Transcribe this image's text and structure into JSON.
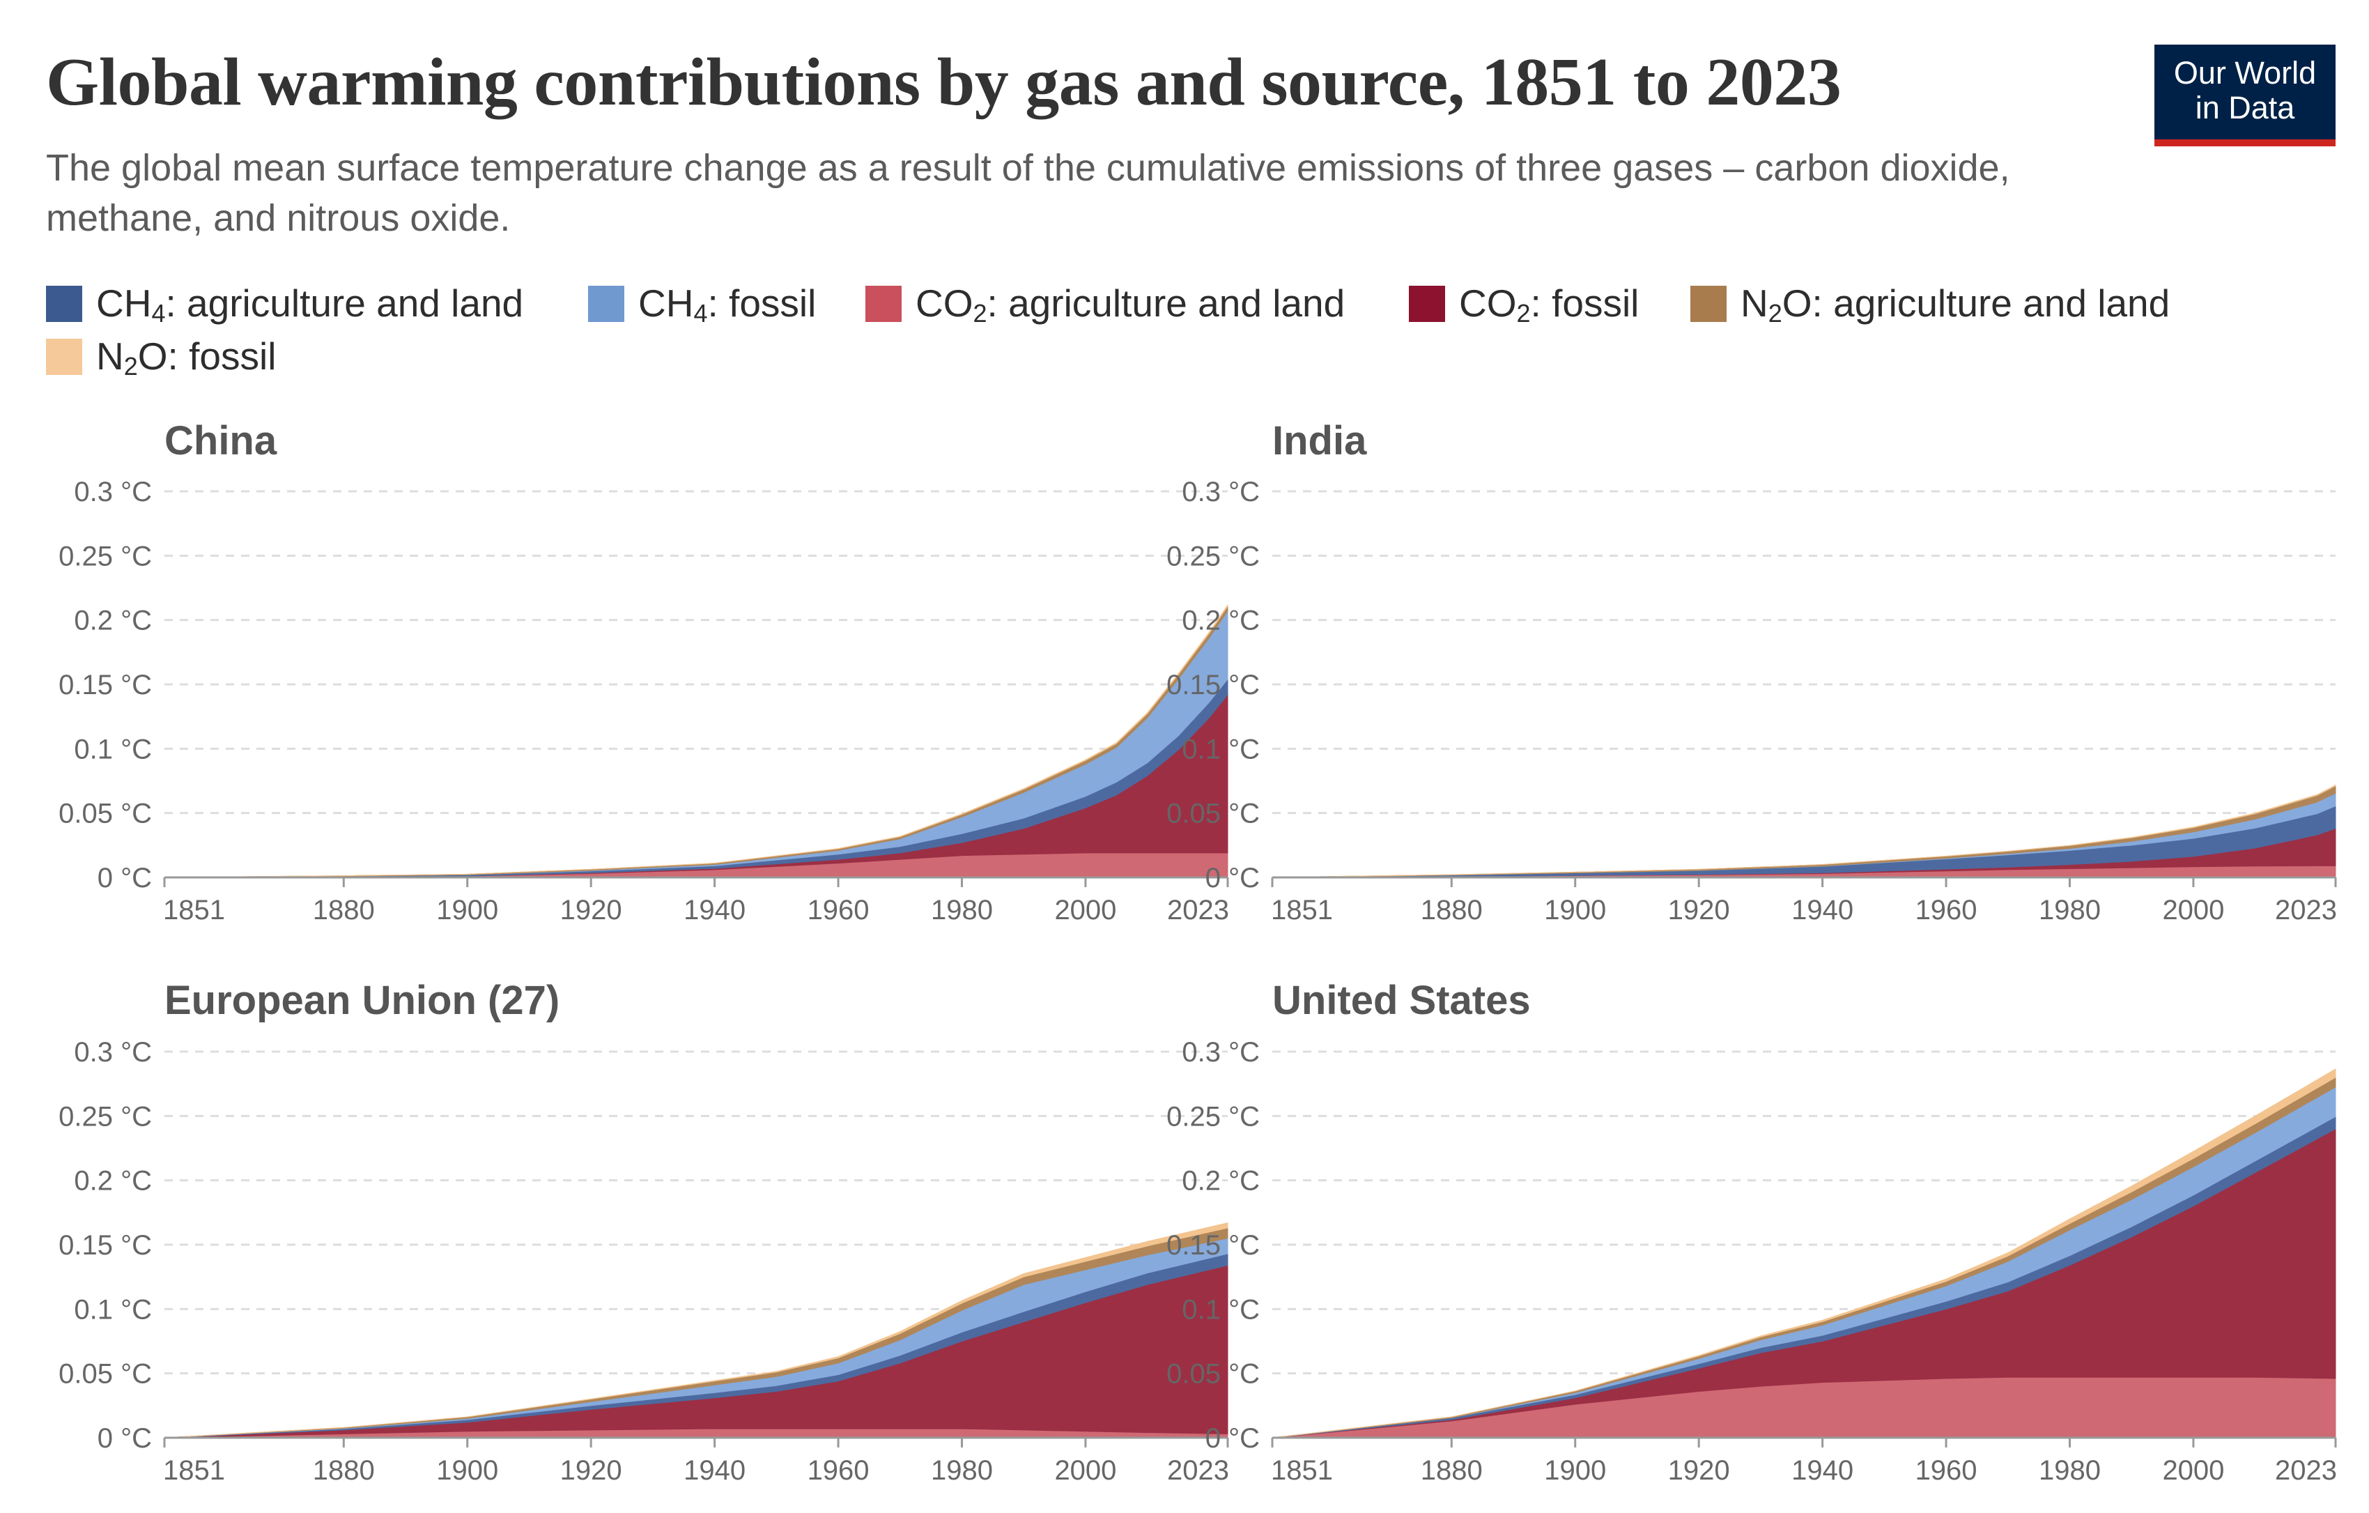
{
  "header": {
    "title": "Global warming contributions by gas and source, 1851 to 2023",
    "subtitle": "The global mean surface temperature change as a result of the cumulative emissions of three gases – carbon dioxide, methane, and nitrous oxide."
  },
  "logo": {
    "line1": "Our World",
    "line2": "in Data"
  },
  "legend": {
    "items": [
      {
        "gas": "CH",
        "sub": "4",
        "rest": ": agriculture and land",
        "color": "#3c5a8f"
      },
      {
        "gas": "CH",
        "sub": "4",
        "rest": ": fossil",
        "color": "#7099d0"
      },
      {
        "gas": "CO",
        "sub": "2",
        "rest": ": agriculture and land",
        "color": "#c9505c"
      },
      {
        "gas": "CO",
        "sub": "2",
        "rest": ": fossil",
        "color": "#8c1230"
      },
      {
        "gas": "N",
        "sub": "2",
        "rest": "O: agriculture and land",
        "color": "#a87c4d"
      },
      {
        "gas": "N",
        "sub": "2",
        "rest": "O: fossil",
        "color": "#f5c99a"
      }
    ]
  },
  "chart_data": [
    {
      "type": "area",
      "stacked": true,
      "title": "China",
      "x": [
        1851,
        1880,
        1900,
        1920,
        1940,
        1960,
        1970,
        1980,
        1990,
        2000,
        2005,
        2010,
        2015,
        2020,
        2023
      ],
      "x_ticks": [
        "1851",
        "1880",
        "1900",
        "1920",
        "1940",
        "1960",
        "1980",
        "2000",
        "2023"
      ],
      "y_ticks": [
        "0 °C",
        "0.05 °C",
        "0.1 °C",
        "0.15 °C",
        "0.2 °C",
        "0.25 °C",
        "0.3 °C"
      ],
      "ylim": [
        0,
        0.3
      ],
      "series": [
        {
          "name": "CO₂: agriculture and land",
          "values": [
            0,
            0.0005,
            0.001,
            0.003,
            0.006,
            0.011,
            0.014,
            0.017,
            0.018,
            0.019,
            0.019,
            0.019,
            0.019,
            0.019,
            0.019
          ]
        },
        {
          "name": "CO₂: fossil",
          "values": [
            0,
            0,
            0,
            0.0005,
            0.001,
            0.003,
            0.005,
            0.01,
            0.02,
            0.035,
            0.045,
            0.06,
            0.08,
            0.105,
            0.123
          ]
        },
        {
          "name": "CH₄: agriculture and land",
          "values": [
            0,
            0.0005,
            0.001,
            0.0015,
            0.002,
            0.004,
            0.005,
            0.007,
            0.008,
            0.009,
            0.01,
            0.01,
            0.011,
            0.012,
            0.012
          ]
        },
        {
          "name": "CH₄: fossil",
          "values": [
            0,
            0,
            0,
            0.0005,
            0.001,
            0.003,
            0.006,
            0.013,
            0.02,
            0.025,
            0.027,
            0.035,
            0.044,
            0.05,
            0.053
          ]
        },
        {
          "name": "N₂O: agriculture and land",
          "values": [
            0,
            0.0003,
            0.0005,
            0.0008,
            0.001,
            0.0013,
            0.0016,
            0.002,
            0.0025,
            0.0028,
            0.003,
            0.0032,
            0.0034,
            0.0036,
            0.0037
          ]
        },
        {
          "name": "N₂O: fossil",
          "values": [
            0,
            0,
            0,
            0,
            0.0001,
            0.0002,
            0.0003,
            0.0004,
            0.0005,
            0.0006,
            0.0007,
            0.0008,
            0.0009,
            0.001,
            0.001
          ]
        }
      ]
    },
    {
      "type": "area",
      "stacked": true,
      "title": "India",
      "x": [
        1851,
        1880,
        1900,
        1920,
        1940,
        1960,
        1970,
        1980,
        1990,
        2000,
        2010,
        2020,
        2023
      ],
      "x_ticks": [
        "1851",
        "1880",
        "1900",
        "1920",
        "1940",
        "1960",
        "1980",
        "2000",
        "2023"
      ],
      "y_ticks": [
        "0 °C",
        "0.05 °C",
        "0.1 °C",
        "0.15 °C",
        "0.2 °C",
        "0.25 °C",
        "0.3 °C"
      ],
      "ylim": [
        0,
        0.3
      ],
      "series": [
        {
          "name": "CO₂: agriculture and land",
          "values": [
            0,
            0.0008,
            0.0015,
            0.002,
            0.003,
            0.005,
            0.006,
            0.0068,
            0.0075,
            0.0083,
            0.0088,
            0.009,
            0.009
          ]
        },
        {
          "name": "CO₂: fossil",
          "values": [
            0,
            0,
            0,
            0.0003,
            0.0006,
            0.0014,
            0.002,
            0.0032,
            0.005,
            0.008,
            0.014,
            0.024,
            0.029
          ]
        },
        {
          "name": "CH₄: agriculture and land",
          "values": [
            0,
            0.001,
            0.002,
            0.003,
            0.005,
            0.008,
            0.0095,
            0.011,
            0.0125,
            0.014,
            0.0155,
            0.0165,
            0.0175
          ]
        },
        {
          "name": "CH₄: fossil",
          "values": [
            0,
            0,
            0,
            0.0001,
            0.0002,
            0.0005,
            0.001,
            0.0015,
            0.003,
            0.005,
            0.007,
            0.009,
            0.01
          ]
        },
        {
          "name": "N₂O: agriculture and land",
          "values": [
            0,
            0.0003,
            0.0006,
            0.0009,
            0.0012,
            0.0016,
            0.0018,
            0.0022,
            0.0028,
            0.0034,
            0.0042,
            0.0052,
            0.0056
          ]
        },
        {
          "name": "N₂O: fossil",
          "values": [
            0,
            0,
            0,
            0,
            0,
            0.0001,
            0.0001,
            0.0002,
            0.0003,
            0.0004,
            0.0005,
            0.0006,
            0.0007
          ]
        }
      ]
    },
    {
      "type": "area",
      "stacked": true,
      "title": "European Union (27)",
      "x": [
        1851,
        1880,
        1900,
        1920,
        1940,
        1950,
        1960,
        1970,
        1980,
        1990,
        2000,
        2010,
        2023
      ],
      "x_ticks": [
        "1851",
        "1880",
        "1900",
        "1920",
        "1940",
        "1960",
        "1980",
        "2000",
        "2023"
      ],
      "y_ticks": [
        "0 °C",
        "0.05 °C",
        "0.1 °C",
        "0.15 °C",
        "0.2 °C",
        "0.25 °C",
        "0.3 °C"
      ],
      "ylim": [
        0,
        0.3
      ],
      "series": [
        {
          "name": "CO₂: agriculture and land",
          "values": [
            0,
            0.003,
            0.005,
            0.006,
            0.007,
            0.007,
            0.007,
            0.007,
            0.007,
            0.006,
            0.005,
            0.004,
            0.003
          ]
        },
        {
          "name": "CO₂: fossil",
          "values": [
            0,
            0.003,
            0.007,
            0.016,
            0.024,
            0.029,
            0.037,
            0.051,
            0.068,
            0.084,
            0.1,
            0.115,
            0.131
          ]
        },
        {
          "name": "CH₄: agriculture and land",
          "values": [
            0,
            0.001,
            0.002,
            0.003,
            0.004,
            0.0045,
            0.005,
            0.006,
            0.007,
            0.008,
            0.0085,
            0.009,
            0.009
          ]
        },
        {
          "name": "CH₄: fossil",
          "values": [
            0,
            0.0003,
            0.001,
            0.003,
            0.006,
            0.007,
            0.009,
            0.012,
            0.017,
            0.021,
            0.017,
            0.014,
            0.012
          ]
        },
        {
          "name": "N₂O: agriculture and land",
          "values": [
            0,
            0.0006,
            0.0012,
            0.002,
            0.003,
            0.0035,
            0.004,
            0.005,
            0.0055,
            0.006,
            0.0065,
            0.007,
            0.008
          ]
        },
        {
          "name": "N₂O: fossil",
          "values": [
            0,
            0,
            0,
            0.0002,
            0.0004,
            0.0006,
            0.001,
            0.0015,
            0.002,
            0.0025,
            0.003,
            0.0035,
            0.004
          ]
        }
      ]
    },
    {
      "type": "area",
      "stacked": true,
      "title": "United States",
      "x": [
        1851,
        1880,
        1900,
        1920,
        1930,
        1940,
        1960,
        1970,
        1980,
        1990,
        2000,
        2010,
        2023
      ],
      "x_ticks": [
        "1851",
        "1880",
        "1900",
        "1920",
        "1940",
        "1960",
        "1980",
        "2000",
        "2023"
      ],
      "y_ticks": [
        "0 °C",
        "0.05 °C",
        "0.1 °C",
        "0.15 °C",
        "0.2 °C",
        "0.25 °C",
        "0.3 °C"
      ],
      "ylim": [
        0,
        0.3
      ],
      "series": [
        {
          "name": "CO₂: agriculture and land",
          "values": [
            0,
            0.013,
            0.026,
            0.036,
            0.04,
            0.043,
            0.046,
            0.047,
            0.047,
            0.047,
            0.047,
            0.047,
            0.046
          ]
        },
        {
          "name": "CO₂: fossil",
          "values": [
            0,
            0.001,
            0.005,
            0.018,
            0.026,
            0.032,
            0.054,
            0.067,
            0.087,
            0.109,
            0.133,
            0.159,
            0.194
          ]
        },
        {
          "name": "CH₄: agriculture and land",
          "values": [
            0,
            0.0015,
            0.0025,
            0.0035,
            0.004,
            0.0045,
            0.006,
            0.007,
            0.0075,
            0.008,
            0.0085,
            0.009,
            0.0095
          ]
        },
        {
          "name": "CH₄: fossil",
          "values": [
            0,
            0,
            0.0015,
            0.004,
            0.006,
            0.008,
            0.012,
            0.016,
            0.02,
            0.021,
            0.022,
            0.022,
            0.023
          ]
        },
        {
          "name": "N₂O: agriculture and land",
          "values": [
            0,
            0.0007,
            0.0013,
            0.002,
            0.0023,
            0.0027,
            0.0035,
            0.0042,
            0.005,
            0.006,
            0.0065,
            0.007,
            0.0075
          ]
        },
        {
          "name": "N₂O: fossil",
          "values": [
            0,
            0,
            0,
            0.0005,
            0.0008,
            0.0011,
            0.0018,
            0.0025,
            0.0035,
            0.0045,
            0.0055,
            0.006,
            0.0065
          ]
        }
      ]
    }
  ]
}
